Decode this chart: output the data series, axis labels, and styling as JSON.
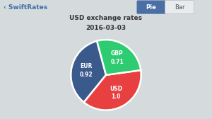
{
  "title_line1": "USD exchange rates",
  "title_line2": "2016-03-03",
  "title_fontsize": 6.5,
  "slices": [
    {
      "label": "EUR",
      "value": 0.92,
      "color": "#3a5a8c"
    },
    {
      "label": "USD",
      "value": 1.0,
      "color": "#e84040"
    },
    {
      "label": "GBP",
      "value": 0.71,
      "color": "#2ecc71"
    }
  ],
  "background_color": "#d5dadd",
  "pie_button_color": "#4a6fa5",
  "bar_button_color": "#e8ecef",
  "nav_text": "SwiftRates",
  "nav_text_color": "#3a6ea5",
  "pie_btn_text": "Pie",
  "bar_btn_text": "Bar",
  "label_color": "#ffffff",
  "label_fontsize": 5.5,
  "startangle": 105
}
